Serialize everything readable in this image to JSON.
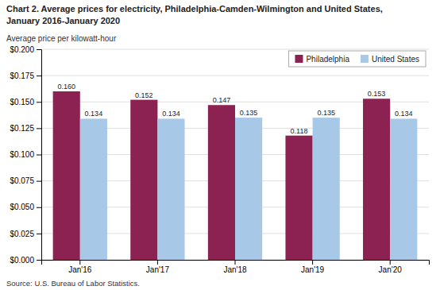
{
  "chart_data": {
    "type": "bar",
    "title": "Chart 2. Average prices for electricity, Philadelphia-Camden-Wilmington and United States,",
    "subtitle": "January 2016-January 2020",
    "y_label": "Average price per kilowatt-hour",
    "source": "Source: U.S. Bureau of Labor Statistics.",
    "categories": [
      "Jan'16",
      "Jan'17",
      "Jan'18",
      "Jan'19",
      "Jan'20"
    ],
    "series": [
      {
        "name": "Philadelphia",
        "color": "#8B2252",
        "values": [
          0.16,
          0.152,
          0.147,
          0.118,
          0.153
        ],
        "value_labels": [
          "0.160",
          "0.152",
          "0.147",
          "0.118",
          "0.153"
        ]
      },
      {
        "name": "United States",
        "color": "#A8C8E8",
        "values": [
          0.134,
          0.134,
          0.135,
          0.135,
          0.134
        ],
        "value_labels": [
          "0.134",
          "0.134",
          "0.135",
          "0.135",
          "0.134"
        ]
      }
    ],
    "ylim": [
      0,
      0.2
    ],
    "yticks": [
      {
        "value": 0.0,
        "label": "$0.000"
      },
      {
        "value": 0.025,
        "label": "$0.025"
      },
      {
        "value": 0.05,
        "label": "$0.050"
      },
      {
        "value": 0.075,
        "label": "$0.075"
      },
      {
        "value": 0.1,
        "label": "$0.100"
      },
      {
        "value": 0.125,
        "label": "$0.125"
      },
      {
        "value": 0.15,
        "label": "$0.150"
      },
      {
        "value": 0.175,
        "label": "$0.175"
      },
      {
        "value": 0.2,
        "label": "$0.200"
      }
    ],
    "grid": true,
    "legend": "upper right",
    "data_labels": true
  }
}
